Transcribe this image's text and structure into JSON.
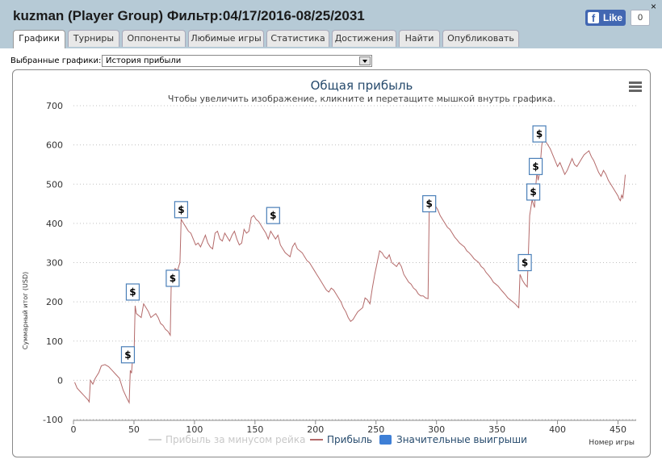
{
  "header": {
    "title": "kuzman (Player Group) Фильтр:04/17/2016-08/25/2031",
    "like_label": "Like",
    "like_count": "0",
    "close_glyph": "×"
  },
  "tabs": [
    {
      "label": "Графики",
      "active": true
    },
    {
      "label": "Турниры"
    },
    {
      "label": "Оппоненты"
    },
    {
      "label": "Любимые игры"
    },
    {
      "label": "Статистика"
    },
    {
      "label": "Достижения"
    },
    {
      "label": "Найти"
    },
    {
      "label": "Опубликовать"
    }
  ],
  "selector": {
    "label": "Выбранные графики:",
    "value": "История прибыли"
  },
  "chart_data": {
    "type": "line",
    "title": "Общая прибыль",
    "subtitle": "Чтобы увеличить изображение, кликните и перетащите мышкой внутрь графика.",
    "xlabel": "Номер игры",
    "ylabel": "Суммарный итог (USD)",
    "xlim": [
      0,
      465
    ],
    "ylim": [
      -100,
      700
    ],
    "x_ticks": [
      0,
      50,
      100,
      150,
      200,
      250,
      300,
      350,
      400,
      450
    ],
    "y_ticks": [
      -100,
      0,
      100,
      200,
      300,
      400,
      500,
      600,
      700
    ],
    "grid": true,
    "legend_position": "bottom",
    "series": [
      {
        "name": "Прибыль за минусом рейка",
        "color": "#d0d0d0",
        "hidden": true,
        "values": []
      },
      {
        "name": "Прибыль",
        "color": "#b46a6a",
        "values": [
          [
            1,
            -5
          ],
          [
            3,
            -20
          ],
          [
            6,
            -30
          ],
          [
            9,
            -40
          ],
          [
            12,
            -50
          ],
          [
            13,
            -55
          ],
          [
            14,
            0
          ],
          [
            16,
            -10
          ],
          [
            18,
            5
          ],
          [
            21,
            20
          ],
          [
            23,
            37
          ],
          [
            26,
            40
          ],
          [
            29,
            35
          ],
          [
            32,
            25
          ],
          [
            35,
            15
          ],
          [
            38,
            5
          ],
          [
            41,
            -25
          ],
          [
            44,
            -45
          ],
          [
            46,
            -57
          ],
          [
            47,
            25
          ],
          [
            48,
            18
          ],
          [
            49,
            60
          ],
          [
            50,
            50
          ],
          [
            51,
            190
          ],
          [
            52,
            170
          ],
          [
            54,
            165
          ],
          [
            56,
            160
          ],
          [
            58,
            195
          ],
          [
            60,
            185
          ],
          [
            62,
            175
          ],
          [
            64,
            160
          ],
          [
            66,
            165
          ],
          [
            68,
            170
          ],
          [
            70,
            160
          ],
          [
            72,
            145
          ],
          [
            74,
            140
          ],
          [
            76,
            130
          ],
          [
            78,
            125
          ],
          [
            79,
            120
          ],
          [
            80,
            115
          ],
          [
            81,
            280
          ],
          [
            82,
            270
          ],
          [
            84,
            285
          ],
          [
            86,
            280
          ],
          [
            88,
            300
          ],
          [
            89,
            410
          ],
          [
            91,
            400
          ],
          [
            93,
            390
          ],
          [
            95,
            380
          ],
          [
            97,
            375
          ],
          [
            99,
            360
          ],
          [
            101,
            345
          ],
          [
            103,
            350
          ],
          [
            105,
            340
          ],
          [
            107,
            355
          ],
          [
            109,
            370
          ],
          [
            111,
            350
          ],
          [
            113,
            340
          ],
          [
            115,
            335
          ],
          [
            117,
            375
          ],
          [
            119,
            380
          ],
          [
            121,
            360
          ],
          [
            123,
            355
          ],
          [
            125,
            375
          ],
          [
            127,
            365
          ],
          [
            129,
            355
          ],
          [
            131,
            370
          ],
          [
            133,
            380
          ],
          [
            135,
            360
          ],
          [
            137,
            345
          ],
          [
            139,
            350
          ],
          [
            141,
            385
          ],
          [
            143,
            375
          ],
          [
            145,
            380
          ],
          [
            147,
            415
          ],
          [
            149,
            420
          ],
          [
            151,
            410
          ],
          [
            153,
            405
          ],
          [
            155,
            395
          ],
          [
            157,
            385
          ],
          [
            159,
            375
          ],
          [
            161,
            360
          ],
          [
            163,
            380
          ],
          [
            165,
            370
          ],
          [
            167,
            360
          ],
          [
            169,
            370
          ],
          [
            171,
            345
          ],
          [
            173,
            335
          ],
          [
            175,
            325
          ],
          [
            177,
            320
          ],
          [
            179,
            315
          ],
          [
            181,
            340
          ],
          [
            183,
            350
          ],
          [
            185,
            335
          ],
          [
            187,
            330
          ],
          [
            189,
            325
          ],
          [
            191,
            315
          ],
          [
            193,
            305
          ],
          [
            195,
            300
          ],
          [
            197,
            290
          ],
          [
            199,
            280
          ],
          [
            201,
            270
          ],
          [
            203,
            260
          ],
          [
            205,
            250
          ],
          [
            207,
            240
          ],
          [
            209,
            230
          ],
          [
            211,
            225
          ],
          [
            213,
            235
          ],
          [
            215,
            230
          ],
          [
            217,
            220
          ],
          [
            219,
            210
          ],
          [
            221,
            200
          ],
          [
            223,
            185
          ],
          [
            225,
            175
          ],
          [
            227,
            160
          ],
          [
            229,
            150
          ],
          [
            231,
            155
          ],
          [
            233,
            165
          ],
          [
            235,
            175
          ],
          [
            237,
            180
          ],
          [
            239,
            185
          ],
          [
            241,
            210
          ],
          [
            243,
            205
          ],
          [
            245,
            195
          ],
          [
            247,
            235
          ],
          [
            249,
            270
          ],
          [
            251,
            300
          ],
          [
            253,
            330
          ],
          [
            255,
            325
          ],
          [
            257,
            315
          ],
          [
            259,
            310
          ],
          [
            261,
            320
          ],
          [
            263,
            300
          ],
          [
            265,
            295
          ],
          [
            267,
            290
          ],
          [
            269,
            300
          ],
          [
            271,
            290
          ],
          [
            273,
            270
          ],
          [
            275,
            260
          ],
          [
            277,
            250
          ],
          [
            279,
            245
          ],
          [
            281,
            235
          ],
          [
            283,
            230
          ],
          [
            285,
            220
          ],
          [
            287,
            215
          ],
          [
            289,
            215
          ],
          [
            291,
            210
          ],
          [
            293,
            208
          ],
          [
            294,
            440
          ],
          [
            295,
            460
          ],
          [
            297,
            455
          ],
          [
            299,
            445
          ],
          [
            301,
            435
          ],
          [
            303,
            420
          ],
          [
            305,
            410
          ],
          [
            307,
            400
          ],
          [
            309,
            390
          ],
          [
            311,
            385
          ],
          [
            313,
            375
          ],
          [
            315,
            365
          ],
          [
            317,
            358
          ],
          [
            319,
            350
          ],
          [
            321,
            345
          ],
          [
            323,
            340
          ],
          [
            325,
            330
          ],
          [
            327,
            325
          ],
          [
            329,
            318
          ],
          [
            331,
            310
          ],
          [
            333,
            305
          ],
          [
            335,
            300
          ],
          [
            337,
            290
          ],
          [
            339,
            285
          ],
          [
            341,
            275
          ],
          [
            343,
            268
          ],
          [
            345,
            260
          ],
          [
            347,
            250
          ],
          [
            349,
            245
          ],
          [
            351,
            240
          ],
          [
            353,
            232
          ],
          [
            355,
            225
          ],
          [
            357,
            218
          ],
          [
            359,
            210
          ],
          [
            361,
            205
          ],
          [
            363,
            200
          ],
          [
            365,
            195
          ],
          [
            367,
            188
          ],
          [
            368,
            185
          ],
          [
            369,
            270
          ],
          [
            371,
            255
          ],
          [
            373,
            245
          ],
          [
            375,
            238
          ],
          [
            377,
            420
          ],
          [
            378,
            440
          ],
          [
            379,
            460
          ],
          [
            381,
            440
          ],
          [
            382,
            495
          ],
          [
            383,
            530
          ],
          [
            384,
            510
          ],
          [
            385,
            525
          ],
          [
            386,
            560
          ],
          [
            387,
            600
          ],
          [
            388,
            615
          ],
          [
            390,
            610
          ],
          [
            392,
            600
          ],
          [
            394,
            590
          ],
          [
            396,
            575
          ],
          [
            398,
            560
          ],
          [
            400,
            545
          ],
          [
            402,
            555
          ],
          [
            404,
            540
          ],
          [
            406,
            525
          ],
          [
            408,
            535
          ],
          [
            410,
            550
          ],
          [
            412,
            565
          ],
          [
            414,
            550
          ],
          [
            416,
            545
          ],
          [
            418,
            555
          ],
          [
            420,
            565
          ],
          [
            422,
            575
          ],
          [
            424,
            580
          ],
          [
            426,
            585
          ],
          [
            428,
            570
          ],
          [
            430,
            560
          ],
          [
            432,
            545
          ],
          [
            434,
            530
          ],
          [
            436,
            520
          ],
          [
            438,
            535
          ],
          [
            440,
            525
          ],
          [
            442,
            510
          ],
          [
            444,
            500
          ],
          [
            446,
            490
          ],
          [
            448,
            480
          ],
          [
            450,
            470
          ],
          [
            451,
            462
          ],
          [
            452,
            458
          ],
          [
            453,
            472
          ],
          [
            454,
            465
          ],
          [
            455,
            490
          ],
          [
            456,
            524
          ]
        ]
      },
      {
        "name": "Значительные выигрыши",
        "color": "#3e7fd6",
        "flag_glyph": "$",
        "values": [
          [
            45,
            65
          ],
          [
            49,
            225
          ],
          [
            82,
            260
          ],
          [
            89,
            435
          ],
          [
            165,
            420
          ],
          [
            294,
            450
          ],
          [
            373,
            300
          ],
          [
            380,
            480
          ],
          [
            382,
            545
          ],
          [
            385,
            628
          ]
        ]
      }
    ]
  }
}
